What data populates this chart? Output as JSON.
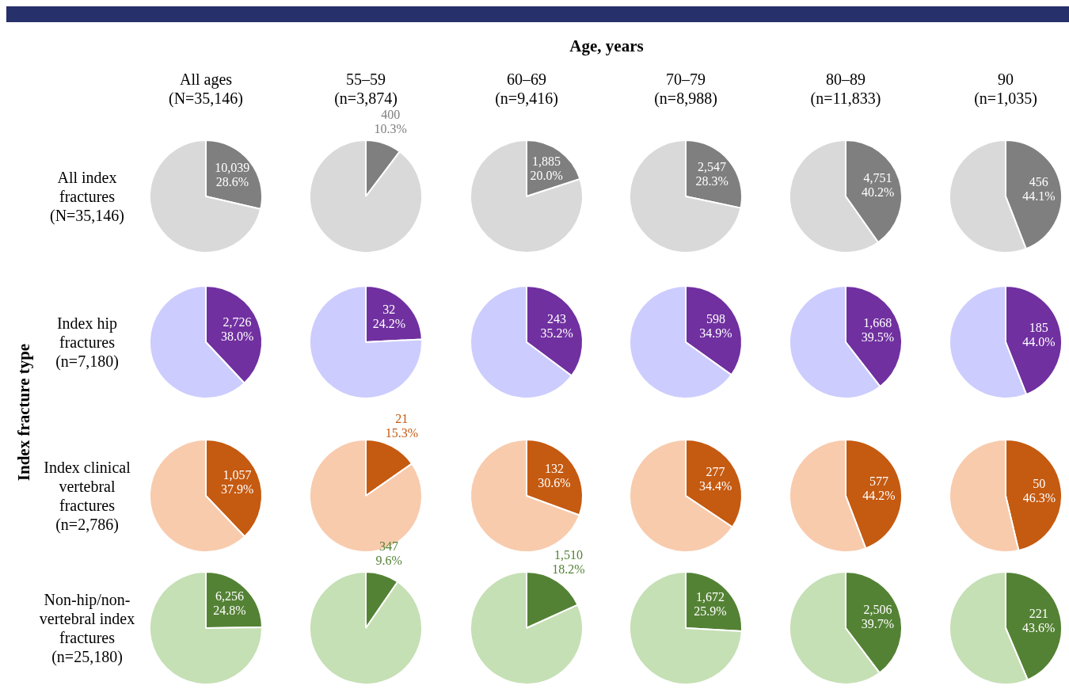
{
  "chart_data": [
    {
      "type": "other",
      "title": "Age, years",
      "ylabel": "Index fracture type"
    },
    {
      "type": "pie",
      "title": "All ages\n(N=35,146)",
      "ylabel": "All index\nfractures\n(N=35,146)",
      "categories": [
        null,
        null
      ],
      "values": [
        28.6,
        71.4
      ],
      "colors": [
        "#7f7f7f",
        "#d9d9d9"
      ],
      "value_labels": [
        "10,039\n28.6%",
        null
      ]
    },
    {
      "type": "pie",
      "title": "55–59\n(n=3,874)",
      "categories": [
        null,
        null
      ],
      "values": [
        10.3,
        89.7
      ],
      "colors": [
        "#7f7f7f",
        "#d9d9d9"
      ],
      "value_labels": [
        "400\n10.3%",
        null
      ]
    },
    {
      "type": "pie",
      "title": "60–69\n(n=9,416)",
      "categories": [
        null,
        null
      ],
      "values": [
        20.0,
        80.0
      ],
      "colors": [
        "#7f7f7f",
        "#d9d9d9"
      ],
      "value_labels": [
        "1,885\n20.0%",
        null
      ]
    },
    {
      "type": "pie",
      "title": "70–79\n(n=8,988)",
      "categories": [
        null,
        null
      ],
      "values": [
        28.3,
        71.7
      ],
      "colors": [
        "#7f7f7f",
        "#d9d9d9"
      ],
      "value_labels": [
        "2,547\n28.3%",
        null
      ]
    },
    {
      "type": "pie",
      "title": "80–89\n(n=11,833)",
      "categories": [
        null,
        null
      ],
      "values": [
        40.2,
        59.8
      ],
      "colors": [
        "#7f7f7f",
        "#d9d9d9"
      ],
      "value_labels": [
        "4,751\n40.2%",
        null
      ]
    },
    {
      "type": "pie",
      "title": "90\n(n=1,035)",
      "categories": [
        null,
        null
      ],
      "values": [
        44.1,
        55.9
      ],
      "colors": [
        "#7f7f7f",
        "#d9d9d9"
      ],
      "value_labels": [
        "456\n44.1%",
        null
      ]
    },
    {
      "type": "pie",
      "ylabel": "Index hip\nfractures\n(n=7,180)",
      "categories": [
        null,
        null
      ],
      "values": [
        38.0,
        62.0
      ],
      "colors": [
        "#7030a0",
        "#ccccff"
      ],
      "value_labels": [
        "2,726\n38.0%",
        null
      ]
    },
    {
      "type": "pie",
      "categories": [
        null,
        null
      ],
      "values": [
        24.2,
        75.8
      ],
      "colors": [
        "#7030a0",
        "#ccccff"
      ],
      "value_labels": [
        "32\n24.2%",
        null
      ]
    },
    {
      "type": "pie",
      "categories": [
        null,
        null
      ],
      "values": [
        35.2,
        64.8
      ],
      "colors": [
        "#7030a0",
        "#ccccff"
      ],
      "value_labels": [
        "243\n35.2%",
        null
      ]
    },
    {
      "type": "pie",
      "categories": [
        null,
        null
      ],
      "values": [
        34.9,
        65.1
      ],
      "colors": [
        "#7030a0",
        "#ccccff"
      ],
      "value_labels": [
        "598\n34.9%",
        null
      ]
    },
    {
      "type": "pie",
      "categories": [
        null,
        null
      ],
      "values": [
        39.5,
        60.5
      ],
      "colors": [
        "#7030a0",
        "#ccccff"
      ],
      "value_labels": [
        "1,668\n39.5%",
        null
      ]
    },
    {
      "type": "pie",
      "categories": [
        null,
        null
      ],
      "values": [
        44.0,
        56.0
      ],
      "colors": [
        "#7030a0",
        "#ccccff"
      ],
      "value_labels": [
        "185\n44.0%",
        null
      ]
    },
    {
      "type": "pie",
      "ylabel": "Index clinical\nvertebral\nfractures\n(n=2,786)",
      "categories": [
        null,
        null
      ],
      "values": [
        37.9,
        62.1
      ],
      "colors": [
        "#c55a11",
        "#f8cbad"
      ],
      "value_labels": [
        "1,057\n37.9%",
        null
      ]
    },
    {
      "type": "pie",
      "categories": [
        null,
        null
      ],
      "values": [
        15.3,
        84.7
      ],
      "colors": [
        "#c55a11",
        "#f8cbad"
      ],
      "value_labels": [
        "21\n15.3%",
        null
      ]
    },
    {
      "type": "pie",
      "categories": [
        null,
        null
      ],
      "values": [
        30.6,
        69.4
      ],
      "colors": [
        "#c55a11",
        "#f8cbad"
      ],
      "value_labels": [
        "132\n30.6%",
        null
      ]
    },
    {
      "type": "pie",
      "categories": [
        null,
        null
      ],
      "values": [
        34.4,
        65.6
      ],
      "colors": [
        "#c55a11",
        "#f8cbad"
      ],
      "value_labels": [
        "277\n34.4%",
        null
      ]
    },
    {
      "type": "pie",
      "categories": [
        null,
        null
      ],
      "values": [
        44.2,
        55.8
      ],
      "colors": [
        "#c55a11",
        "#f8cbad"
      ],
      "value_labels": [
        "577\n44.2%",
        null
      ]
    },
    {
      "type": "pie",
      "categories": [
        null,
        null
      ],
      "values": [
        46.3,
        53.7
      ],
      "colors": [
        "#c55a11",
        "#f8cbad"
      ],
      "value_labels": [
        "50\n46.3%",
        null
      ]
    },
    {
      "type": "pie",
      "ylabel": "Non-hip/non-\nvertebral index\nfractures\n(n=25,180)",
      "categories": [
        null,
        null
      ],
      "values": [
        24.8,
        75.2
      ],
      "colors": [
        "#548235",
        "#c5e0b4"
      ],
      "value_labels": [
        "6,256\n24.8%",
        null
      ]
    },
    {
      "type": "pie",
      "categories": [
        null,
        null
      ],
      "values": [
        9.6,
        90.4
      ],
      "colors": [
        "#548235",
        "#c5e0b4"
      ],
      "value_labels": [
        "347\n9.6%",
        null
      ]
    },
    {
      "type": "pie",
      "categories": [
        null,
        null
      ],
      "values": [
        18.2,
        81.8
      ],
      "colors": [
        "#548235",
        "#c5e0b4"
      ],
      "value_labels": [
        "1,510\n18.2%",
        null
      ]
    },
    {
      "type": "pie",
      "categories": [
        null,
        null
      ],
      "values": [
        25.9,
        74.1
      ],
      "colors": [
        "#548235",
        "#c5e0b4"
      ],
      "value_labels": [
        "1,672\n25.9%",
        null
      ]
    },
    {
      "type": "pie",
      "categories": [
        null,
        null
      ],
      "values": [
        39.7,
        60.3
      ],
      "colors": [
        "#548235",
        "#c5e0b4"
      ],
      "value_labels": [
        "2,506\n39.7%",
        null
      ]
    },
    {
      "type": "pie",
      "categories": [
        null,
        null
      ],
      "values": [
        43.6,
        56.4
      ],
      "colors": [
        "#548235",
        "#c5e0b4"
      ],
      "value_labels": [
        "221\n43.6%",
        null
      ]
    }
  ]
}
